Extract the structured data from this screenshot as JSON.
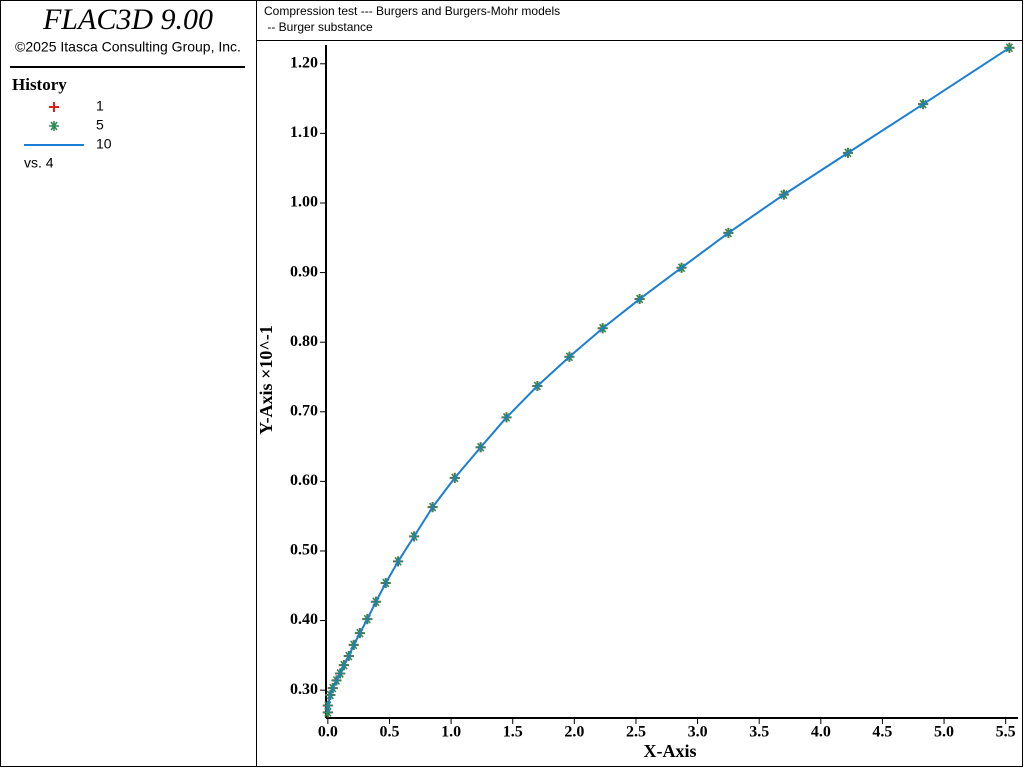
{
  "chart_data": {
    "type": "line",
    "app_title": "FLAC3D 9.00",
    "copyright": "©2025 Itasca Consulting Group, Inc.",
    "legend_title": "History",
    "legend_note": "vs. 4",
    "title": "Compression test --- Burgers and Burgers-Mohr models",
    "subtitle": " -- Burger substance",
    "x_label": "X-Axis",
    "y_label": "Y-Axis ×10^-1",
    "x": [
      0.0,
      0.0,
      0.02,
      0.04,
      0.07,
      0.1,
      0.13,
      0.17,
      0.21,
      0.26,
      0.32,
      0.39,
      0.47,
      0.57,
      0.7,
      0.85,
      1.03,
      1.24,
      1.45,
      1.7,
      1.96,
      2.23,
      2.53,
      2.87,
      3.25,
      3.7,
      4.22,
      4.83,
      5.53
    ],
    "series": [
      {
        "name": "1",
        "color": "#e0201b",
        "marker": "plus",
        "values": [
          0.268,
          0.278,
          0.293,
          0.303,
          0.314,
          0.324,
          0.336,
          0.349,
          0.365,
          0.382,
          0.402,
          0.427,
          0.454,
          0.485,
          0.521,
          0.563,
          0.605,
          0.649,
          0.692,
          0.737,
          0.779,
          0.82,
          0.862,
          0.907,
          0.957,
          1.012,
          1.072,
          1.142,
          1.223
        ]
      },
      {
        "name": "5",
        "color": "#2e8b57",
        "marker": "star",
        "values": [
          0.268,
          0.278,
          0.293,
          0.303,
          0.314,
          0.324,
          0.336,
          0.349,
          0.365,
          0.382,
          0.402,
          0.427,
          0.454,
          0.485,
          0.521,
          0.563,
          0.605,
          0.649,
          0.692,
          0.737,
          0.779,
          0.82,
          0.862,
          0.907,
          0.957,
          1.012,
          1.072,
          1.142,
          1.223
        ]
      },
      {
        "name": "10",
        "color": "#1a7fd4",
        "marker": "line",
        "values": [
          0.268,
          0.278,
          0.293,
          0.303,
          0.314,
          0.324,
          0.336,
          0.349,
          0.365,
          0.382,
          0.402,
          0.427,
          0.454,
          0.485,
          0.521,
          0.563,
          0.605,
          0.649,
          0.692,
          0.737,
          0.779,
          0.82,
          0.862,
          0.907,
          0.957,
          1.012,
          1.072,
          1.142,
          1.223
        ]
      }
    ],
    "xlim": [
      -0.015,
      5.6
    ],
    "ylim": [
      0.26,
      1.227
    ],
    "xticks": [
      {
        "value": 0,
        "label": "0.0"
      },
      0.5,
      {
        "value": 1,
        "label": "1.0"
      },
      1.5,
      {
        "value": 2,
        "label": "2.0"
      },
      2.5,
      {
        "value": 3,
        "label": "3.0"
      },
      3.5,
      {
        "value": 4,
        "label": "4.0"
      },
      4.5,
      {
        "value": 5,
        "label": "5.0"
      },
      5.5
    ],
    "yticks": [
      {
        "value": 0.3,
        "label": "0.30"
      },
      {
        "value": 0.4,
        "label": "0.40"
      },
      {
        "value": 0.5,
        "label": "0.50"
      },
      {
        "value": 0.6,
        "label": "0.60"
      },
      {
        "value": 0.7,
        "label": "0.70"
      },
      {
        "value": 0.8,
        "label": "0.80"
      },
      {
        "value": 0.9,
        "label": "0.90"
      },
      {
        "value": 1.0,
        "label": "1.00"
      },
      {
        "value": 1.1,
        "label": "1.10"
      },
      {
        "value": 1.2,
        "label": "1.20"
      }
    ],
    "grid": false
  }
}
